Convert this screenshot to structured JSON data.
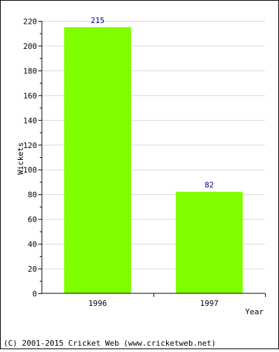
{
  "chart_data": {
    "type": "bar",
    "categories": [
      "1996",
      "1997"
    ],
    "values": [
      215,
      82
    ],
    "data_labels": [
      "215",
      "82"
    ],
    "ylabel": "Wickets",
    "xlabel": "Year",
    "ylim": [
      0,
      220
    ],
    "y_ticks": [
      0,
      20,
      40,
      60,
      80,
      100,
      120,
      140,
      160,
      180,
      200,
      220
    ],
    "y_tick_labels": [
      "0",
      "20",
      "40",
      "60",
      "80",
      "100",
      "120",
      "140",
      "160",
      "180",
      "200",
      "220"
    ],
    "grid": true,
    "bar_color": "#80ff00",
    "data_label_color": "#00008b",
    "grid_color": "#d8d8d8"
  },
  "footer": {
    "copyright": "(C) 2001-2015 Cricket Web (www.cricketweb.net)"
  }
}
